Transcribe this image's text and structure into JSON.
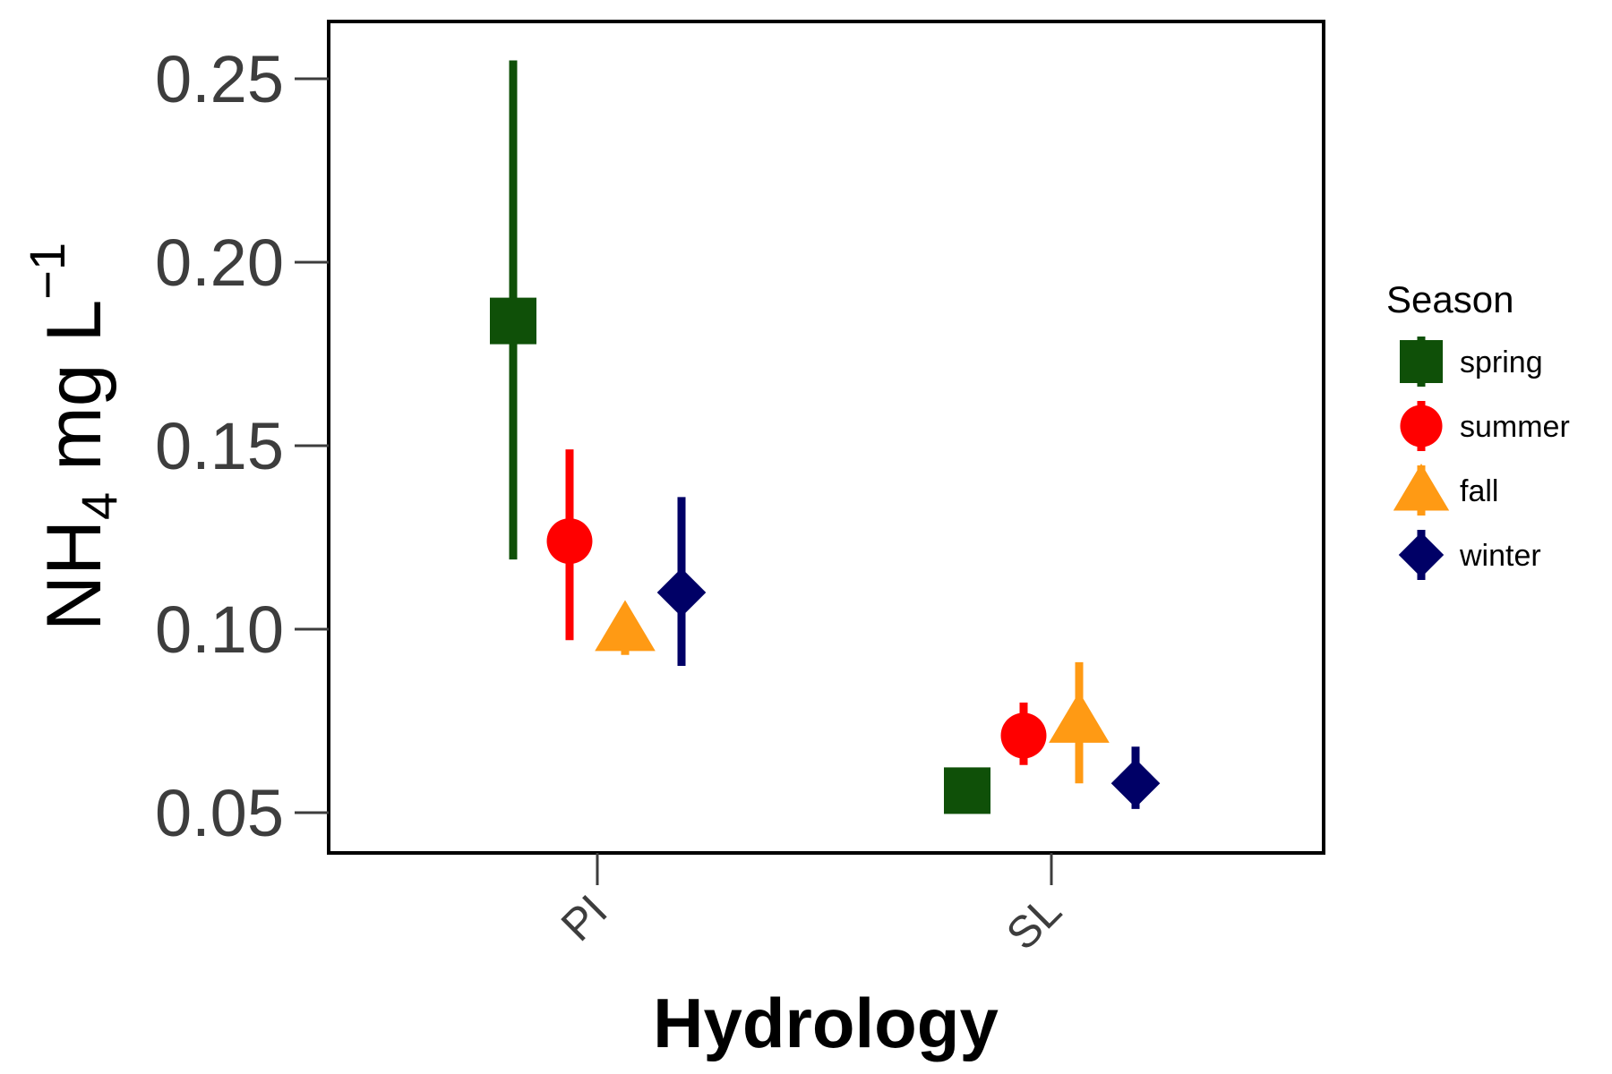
{
  "chart_data": {
    "type": "scatter",
    "subtype": "point-range",
    "xlabel": "Hydrology",
    "ylabel": {
      "base": "NH",
      "sub": "4",
      "middle": " mg L",
      "sup": "−1"
    },
    "categories": [
      "PI",
      "SL"
    ],
    "ylim": [
      0.04,
      0.265
    ],
    "yticks": [
      0.05,
      0.1,
      0.15,
      0.2,
      0.25
    ],
    "ytick_labels": [
      "0.05",
      "0.10",
      "0.15",
      "0.20",
      "0.25"
    ],
    "legend": {
      "title": "Season",
      "position": "right"
    },
    "series": [
      {
        "name": "spring",
        "shape": "square",
        "color": "#0f5008",
        "points": [
          {
            "x": "PI",
            "y": 0.184,
            "low": 0.119,
            "high": 0.255
          },
          {
            "x": "SL",
            "y": 0.056,
            "low": 0.055,
            "high": 0.061
          }
        ]
      },
      {
        "name": "summer",
        "shape": "circle",
        "color": "#ff0000",
        "points": [
          {
            "x": "PI",
            "y": 0.124,
            "low": 0.097,
            "high": 0.149
          },
          {
            "x": "SL",
            "y": 0.071,
            "low": 0.063,
            "high": 0.08
          }
        ]
      },
      {
        "name": "fall",
        "shape": "triangle",
        "color": "#ff9a14",
        "points": [
          {
            "x": "PI",
            "y": 0.1,
            "low": 0.093,
            "high": 0.101
          },
          {
            "x": "SL",
            "y": 0.075,
            "low": 0.058,
            "high": 0.091
          }
        ]
      },
      {
        "name": "winter",
        "shape": "diamond",
        "color": "#000066",
        "points": [
          {
            "x": "PI",
            "y": 0.11,
            "low": 0.09,
            "high": 0.136
          },
          {
            "x": "SL",
            "y": 0.058,
            "low": 0.051,
            "high": 0.068
          }
        ]
      }
    ]
  }
}
